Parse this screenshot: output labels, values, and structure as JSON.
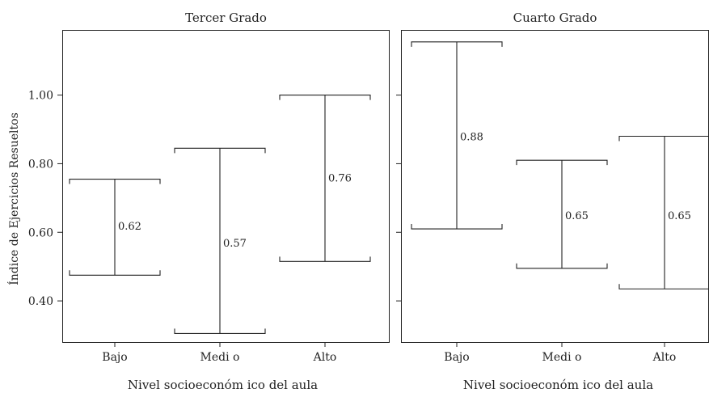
{
  "chart_data": {
    "type": "errorbar",
    "ylabel": "Índice de Ejercicios Resueltos",
    "ylim": [
      0.28,
      1.19
    ],
    "yticks": [
      0.4,
      0.6,
      0.8,
      1.0
    ],
    "ytick_labels": [
      "0.40",
      "0.60",
      "0.80",
      "1.00"
    ],
    "grid": false,
    "categories": [
      "Bajo",
      "Medi o",
      "Alto"
    ],
    "panels": [
      {
        "title": "Tercer Grado",
        "xlabel": "Nivel socioeconóm ico del aula",
        "bars": [
          {
            "category": "Bajo",
            "mean": 0.62,
            "label": "0.62",
            "low": 0.475,
            "high": 0.755
          },
          {
            "category": "Medi o",
            "mean": 0.57,
            "label": "0.57",
            "low": 0.305,
            "high": 0.845
          },
          {
            "category": "Alto",
            "mean": 0.76,
            "label": "0.76",
            "low": 0.515,
            "high": 1.0
          }
        ]
      },
      {
        "title": "Cuarto Grado",
        "xlabel": "Nivel socioeconóm ico del aula",
        "bars": [
          {
            "category": "Bajo",
            "mean": 0.88,
            "label": "0.88",
            "low": 0.61,
            "high": 1.155
          },
          {
            "category": "Medi o",
            "mean": 0.65,
            "label": "0.65",
            "low": 0.495,
            "high": 0.81
          },
          {
            "category": "Alto",
            "mean": 0.65,
            "label": "0.65",
            "low": 0.435,
            "high": 0.88
          }
        ]
      }
    ]
  }
}
